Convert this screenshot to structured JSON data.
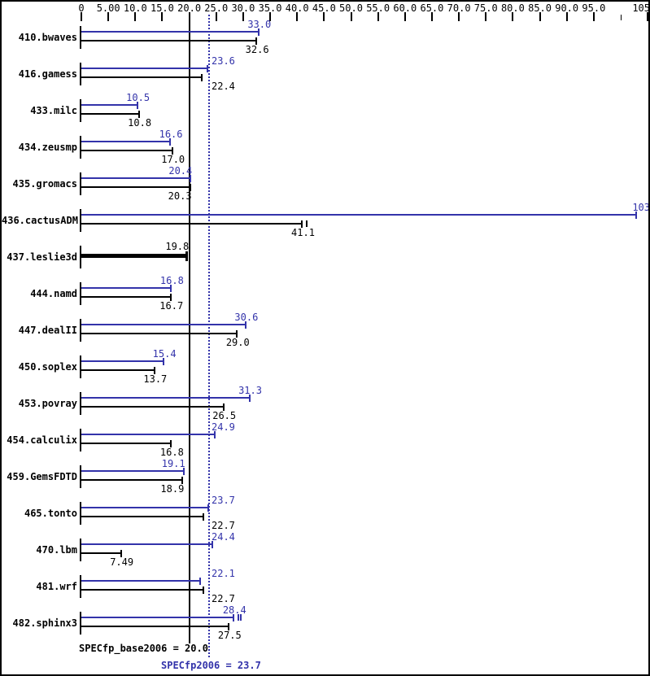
{
  "chart_data": {
    "type": "bar",
    "orientation": "horizontal",
    "title": "",
    "xlabel": "",
    "xlim": [
      0,
      105
    ],
    "grid": false,
    "colors": {
      "peak": "#3333aa",
      "base": "#000000"
    },
    "axis_ticks": [
      {
        "v": 0,
        "label": "0"
      },
      {
        "v": 5,
        "label": "5.00"
      },
      {
        "v": 10,
        "label": "10.0"
      },
      {
        "v": 15,
        "label": "15.0"
      },
      {
        "v": 20,
        "label": "20.0"
      },
      {
        "v": 25,
        "label": "25.0"
      },
      {
        "v": 30,
        "label": "30.0"
      },
      {
        "v": 35,
        "label": "35.0"
      },
      {
        "v": 40,
        "label": "40.0"
      },
      {
        "v": 45,
        "label": "45.0"
      },
      {
        "v": 50,
        "label": "50.0"
      },
      {
        "v": 55,
        "label": "55.0"
      },
      {
        "v": 60,
        "label": "60.0"
      },
      {
        "v": 65,
        "label": "65.0"
      },
      {
        "v": 70,
        "label": "70.0"
      },
      {
        "v": 75,
        "label": "75.0"
      },
      {
        "v": 80,
        "label": "80.0"
      },
      {
        "v": 85,
        "label": "85.0"
      },
      {
        "v": 90,
        "label": "90.0"
      },
      {
        "v": 95,
        "label": "95.0"
      },
      {
        "v": 100,
        "label": ""
      },
      {
        "v": 105,
        "label": "105"
      }
    ],
    "benchmarks": [
      {
        "name": "410.bwaves",
        "peak": 33.0,
        "peak_label": "33.0",
        "peak_anchor": "center",
        "base": 32.6,
        "base_label": "32.6",
        "base_anchor": "center"
      },
      {
        "name": "416.gamess",
        "peak": 23.6,
        "peak_label": "23.6",
        "peak_anchor": "after-line",
        "base": 22.4,
        "base_label": "22.4",
        "base_anchor": "after-line"
      },
      {
        "name": "433.milc",
        "peak": 10.5,
        "peak_label": "10.5",
        "peak_anchor": "center",
        "base": 10.8,
        "base_label": "10.8",
        "base_anchor": "center"
      },
      {
        "name": "434.zeusmp",
        "peak": 16.6,
        "peak_label": "16.6",
        "peak_anchor": "center",
        "base": 17.0,
        "base_label": "17.0",
        "base_anchor": "center"
      },
      {
        "name": "435.gromacs",
        "peak": 20.4,
        "peak_label": "20.4",
        "peak_anchor": "end",
        "base": 20.3,
        "base_label": "20.3",
        "base_anchor": "end"
      },
      {
        "name": "436.cactusADM",
        "peak": 103,
        "peak_label": "103",
        "peak_anchor": "right",
        "base": 41.1,
        "base_label": "41.1",
        "base_anchor": "center",
        "base_extra_ticks": 1
      },
      {
        "name": "437.leslie3d",
        "single": 19.8,
        "single_label": "19.8",
        "single_anchor": "end"
      },
      {
        "name": "444.namd",
        "peak": 16.8,
        "peak_label": "16.8",
        "peak_anchor": "center",
        "base": 16.7,
        "base_label": "16.7",
        "base_anchor": "center"
      },
      {
        "name": "447.dealII",
        "peak": 30.6,
        "peak_label": "30.6",
        "peak_anchor": "center",
        "base": 29.0,
        "base_label": "29.0",
        "base_anchor": "center"
      },
      {
        "name": "450.soplex",
        "peak": 15.4,
        "peak_label": "15.4",
        "peak_anchor": "center",
        "base": 13.7,
        "base_label": "13.7",
        "base_anchor": "center"
      },
      {
        "name": "453.povray",
        "peak": 31.3,
        "peak_label": "31.3",
        "peak_anchor": "center",
        "base": 26.5,
        "base_label": "26.5",
        "base_anchor": "center"
      },
      {
        "name": "454.calculix",
        "peak": 24.9,
        "peak_label": "24.9",
        "peak_anchor": "after-line",
        "base": 16.8,
        "base_label": "16.8",
        "base_anchor": "center"
      },
      {
        "name": "459.GemsFDTD",
        "peak": 19.1,
        "peak_label": "19.1",
        "peak_anchor": "end",
        "base": 18.9,
        "base_label": "18.9",
        "base_anchor": "end"
      },
      {
        "name": "465.tonto",
        "peak": 23.7,
        "peak_label": "23.7",
        "peak_anchor": "after-line",
        "base": 22.7,
        "base_label": "22.7",
        "base_anchor": "after-line"
      },
      {
        "name": "470.lbm",
        "peak": 24.4,
        "peak_label": "24.4",
        "peak_anchor": "after-line",
        "base": 7.49,
        "base_label": "7.49",
        "base_anchor": "center"
      },
      {
        "name": "481.wrf",
        "peak": 22.1,
        "peak_label": "22.1",
        "peak_anchor": "after-line",
        "base": 22.7,
        "base_label": "22.7",
        "base_anchor": "after-line"
      },
      {
        "name": "482.sphinx3",
        "peak": 28.4,
        "peak_label": "28.4",
        "peak_anchor": "center",
        "base": 27.5,
        "base_label": "27.5",
        "base_anchor": "center",
        "peak_extra_ticks": 2
      }
    ],
    "summary": {
      "base_label": "SPECfp_base2006 = 20.0",
      "base_value": 20.0,
      "peak_label": "SPECfp2006 = 23.7",
      "peak_value": 23.7
    }
  }
}
